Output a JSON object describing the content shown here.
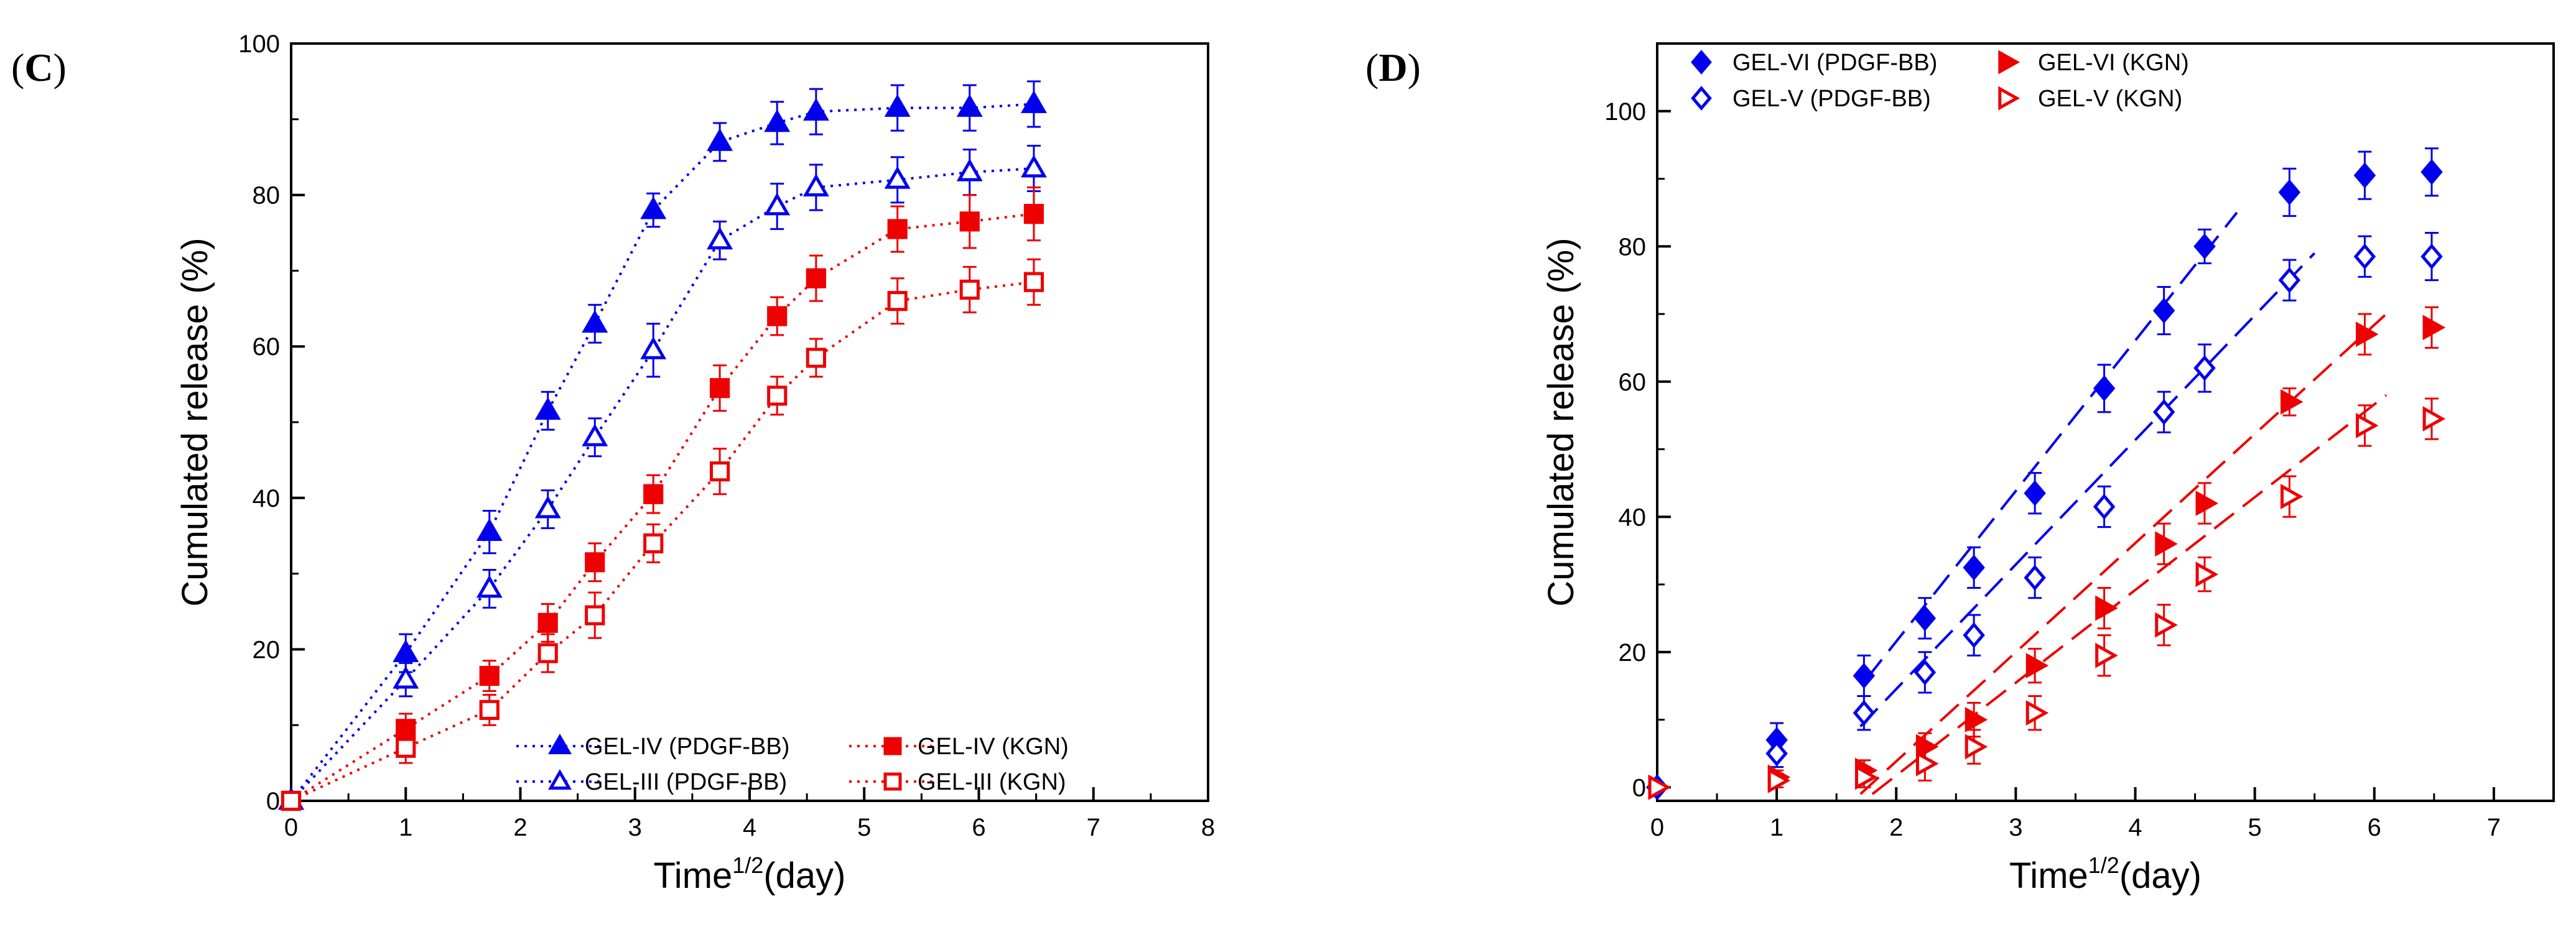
{
  "chart_data": [
    {
      "panel": "C",
      "panel_letter": "C",
      "type": "line",
      "xlabel": "Time",
      "xlabel_sup": "1/2",
      "xlabel_suffix": "(day)",
      "ylabel": "Cumulated release (%)",
      "xlim": [
        0,
        8
      ],
      "ylim": [
        0,
        100
      ],
      "xticks": [
        0,
        1,
        2,
        3,
        4,
        5,
        6,
        7,
        8
      ],
      "yticks": [
        0,
        20,
        40,
        60,
        80,
        100
      ],
      "grid": false,
      "legend_position": "bottom-right",
      "series": [
        {
          "name": "GEL-IV (PDGF-BB)",
          "color": "#0000ee",
          "marker": "triangle",
          "filled": true,
          "line": "dotted",
          "x": [
            0,
            1,
            1.73,
            2.24,
            2.65,
            3.16,
            3.74,
            4.24,
            4.58,
            5.29,
            5.92,
            6.48
          ],
          "values": [
            0,
            19.5,
            35.5,
            51.5,
            63,
            78,
            87,
            89.5,
            91,
            91.5,
            91.5,
            92
          ],
          "errors": [
            0,
            2.5,
            2.8,
            2.5,
            2.5,
            2.2,
            2.5,
            2.8,
            3,
            3,
            3,
            3
          ]
        },
        {
          "name": "GEL-III (PDGF-BB)",
          "color": "#0000ee",
          "marker": "triangle",
          "filled": false,
          "line": "dotted",
          "x": [
            0,
            1,
            1.73,
            2.24,
            2.65,
            3.16,
            3.74,
            4.24,
            4.58,
            5.29,
            5.92,
            6.48
          ],
          "values": [
            0,
            16,
            28,
            38.5,
            48,
            59.5,
            74,
            78.5,
            81,
            82,
            83,
            83.5
          ],
          "errors": [
            0,
            2.2,
            2.5,
            2.5,
            2.5,
            3.5,
            2.5,
            3,
            3,
            3,
            3,
            3
          ]
        },
        {
          "name": "GEL-IV (KGN)",
          "color": "#ee0000",
          "marker": "square",
          "filled": true,
          "line": "dotted",
          "x": [
            0,
            1,
            1.73,
            2.24,
            2.65,
            3.16,
            3.74,
            4.24,
            4.58,
            5.29,
            5.92,
            6.48
          ],
          "values": [
            0,
            9.5,
            16.5,
            23.5,
            31.5,
            40.5,
            54.5,
            64,
            69,
            75.5,
            76.5,
            77.5
          ],
          "errors": [
            0,
            2,
            2,
            2.5,
            2.5,
            2.5,
            3,
            2.5,
            3,
            3,
            3.5,
            3.5
          ]
        },
        {
          "name": "GEL-III  (KGN)",
          "color": "#ee0000",
          "marker": "square",
          "filled": false,
          "line": "dotted",
          "x": [
            0,
            1,
            1.73,
            2.24,
            2.65,
            3.16,
            3.74,
            4.24,
            4.58,
            5.29,
            5.92,
            6.48
          ],
          "values": [
            0,
            7,
            12,
            19.5,
            24.5,
            34,
            43.5,
            53.5,
            58.5,
            66,
            67.5,
            68.5
          ],
          "errors": [
            0,
            2,
            2,
            2.5,
            3,
            2.5,
            3,
            2.5,
            2.5,
            3,
            3,
            3
          ]
        }
      ]
    },
    {
      "panel": "D",
      "panel_letter": "D",
      "type": "scatter",
      "xlabel": "Time",
      "xlabel_sup": "1/2",
      "xlabel_suffix": "(day)",
      "ylabel": "Cumulated release (%)",
      "xlim": [
        0,
        7.5
      ],
      "ylim": [
        -2,
        110
      ],
      "xticks": [
        0,
        1,
        2,
        3,
        4,
        5,
        6,
        7
      ],
      "yticks": [
        0,
        20,
        40,
        60,
        80,
        100
      ],
      "grid": false,
      "legend_position": "top-left",
      "series": [
        {
          "name": "GEL-VI (PDGF-BB)",
          "color": "#0000ee",
          "marker": "diamond",
          "filled": true,
          "x": [
            0,
            1,
            1.73,
            2.24,
            2.65,
            3.16,
            3.74,
            4.24,
            4.58,
            5.29,
            5.92,
            6.48
          ],
          "values": [
            0,
            7,
            16.5,
            25,
            32.5,
            43.5,
            59,
            70.5,
            80,
            88,
            90.5,
            91
          ],
          "errors": [
            0,
            2.5,
            3,
            3,
            3,
            3,
            3.5,
            3.5,
            2.5,
            3.5,
            3.5,
            3.5
          ],
          "fit": {
            "x": [
              1.75,
              4.85
            ],
            "y": [
              16,
              85
            ]
          }
        },
        {
          "name": "GEL-V  (PDGF-BB)",
          "color": "#0000ee",
          "marker": "diamond",
          "filled": false,
          "x": [
            0,
            1,
            1.73,
            2.24,
            2.65,
            3.16,
            3.74,
            4.24,
            4.58,
            5.29,
            5.92,
            6.48
          ],
          "values": [
            0,
            5,
            11,
            17,
            22.5,
            31,
            41.5,
            55.5,
            62,
            75,
            78.5,
            78.5
          ],
          "errors": [
            0,
            2,
            2.5,
            3,
            3,
            3,
            3,
            3,
            3.5,
            3,
            3,
            3.5
          ],
          "fit": {
            "x": [
              1.7,
              5.5
            ],
            "y": [
              9,
              79
            ]
          }
        },
        {
          "name": "GEL-VI (KGN)",
          "color": "#ee0000",
          "marker": "triangle-right",
          "filled": true,
          "x": [
            0,
            1,
            1.73,
            2.24,
            2.65,
            3.16,
            3.74,
            4.24,
            4.58,
            5.29,
            5.92,
            6.48
          ],
          "values": [
            0,
            1.5,
            2.5,
            6,
            10,
            18,
            26.5,
            36,
            42,
            57,
            67,
            68
          ],
          "errors": [
            0,
            1,
            1.5,
            2,
            2.5,
            2.5,
            3,
            3,
            3,
            2,
            3,
            3
          ],
          "fit": {
            "x": [
              1.7,
              6.1
            ],
            "y": [
              -1,
              70
            ]
          }
        },
        {
          "name": "GEL-V  (KGN)",
          "color": "#ee0000",
          "marker": "triangle-right",
          "filled": false,
          "x": [
            0,
            1,
            1.73,
            2.24,
            2.65,
            3.16,
            3.74,
            4.24,
            4.58,
            5.29,
            5.92,
            6.48
          ],
          "values": [
            0,
            1,
            1.5,
            3.5,
            6,
            11,
            19.5,
            24,
            31.5,
            43,
            53.5,
            54.5
          ],
          "errors": [
            0,
            1,
            1.5,
            2.5,
            2.5,
            2.5,
            3,
            3,
            2.5,
            3,
            3,
            3
          ],
          "fit": {
            "x": [
              1.8,
              6.1
            ],
            "y": [
              -1,
              58
            ]
          }
        }
      ]
    }
  ]
}
